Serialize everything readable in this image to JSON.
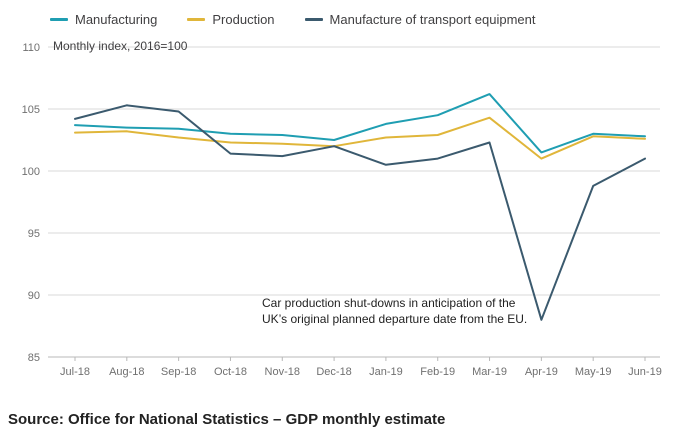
{
  "legend": [
    {
      "label": "Manufacturing",
      "color": "#1f9eb2"
    },
    {
      "label": "Production",
      "color": "#e0b63a"
    },
    {
      "label": "Manufacture of transport equipment",
      "color": "#3b5a6e"
    }
  ],
  "subtitle": "Monthly index, 2016=100",
  "annotation": {
    "line1": "Car production shut-downs in anticipation of the",
    "line2": "UK’s original planned departure date from the EU."
  },
  "source": "Source: Office for National Statistics – GDP monthly estimate",
  "chart_data": {
    "type": "line",
    "title": "",
    "subtitle": "Monthly index, 2016=100",
    "x": [
      "Jul-18",
      "Aug-18",
      "Sep-18",
      "Oct-18",
      "Nov-18",
      "Dec-18",
      "Jan-19",
      "Feb-19",
      "Mar-19",
      "Apr-19",
      "May-19",
      "Jun-19"
    ],
    "xlabel": "",
    "ylabel": "",
    "ylim": [
      85,
      110
    ],
    "yticks": [
      85,
      90,
      95,
      100,
      105,
      110
    ],
    "grid": true,
    "legend_position": "top",
    "series": [
      {
        "name": "Manufacturing",
        "color": "#1f9eb2",
        "values": [
          103.7,
          103.5,
          103.4,
          103.0,
          102.9,
          102.5,
          103.8,
          104.5,
          106.2,
          101.5,
          103.0,
          102.8
        ]
      },
      {
        "name": "Production",
        "color": "#e0b63a",
        "values": [
          103.1,
          103.2,
          102.7,
          102.3,
          102.2,
          102.0,
          102.7,
          102.9,
          104.3,
          101.0,
          102.8,
          102.6
        ]
      },
      {
        "name": "Manufacture of transport equipment",
        "color": "#3b5a6e",
        "values": [
          104.2,
          105.3,
          104.8,
          101.4,
          101.2,
          102.0,
          100.5,
          101.0,
          102.3,
          88.0,
          98.8,
          101.0
        ]
      }
    ]
  }
}
